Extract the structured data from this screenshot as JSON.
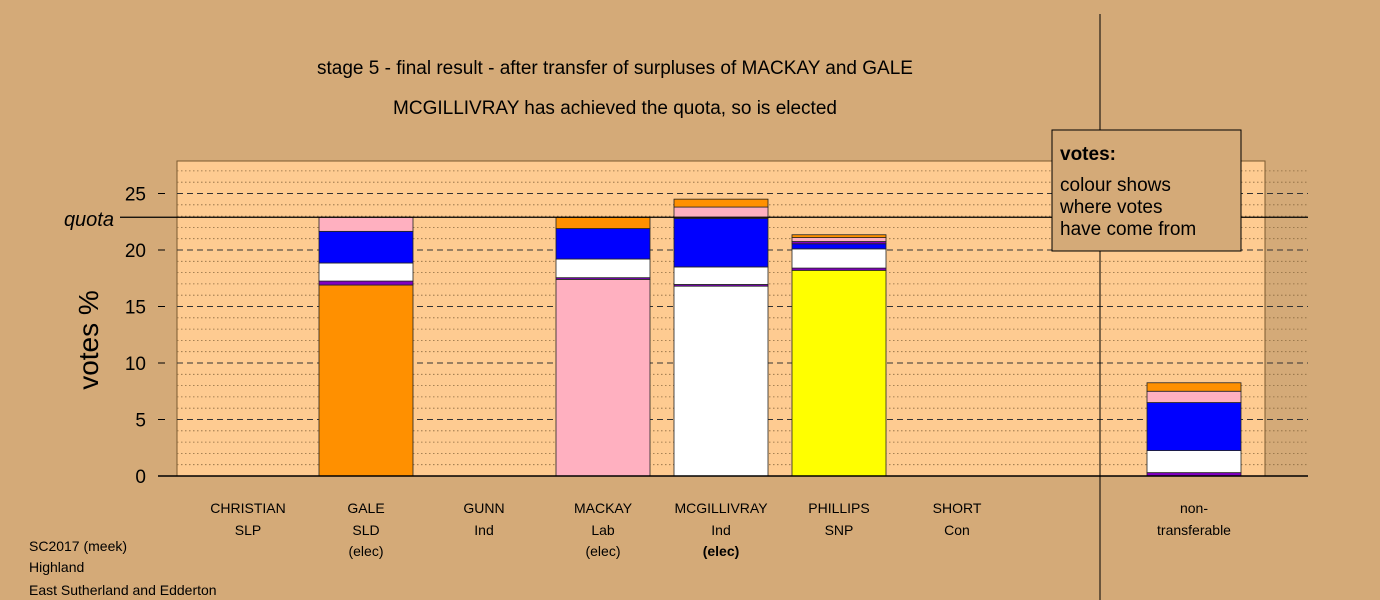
{
  "chart_data": {
    "type": "bar",
    "stacked": true,
    "title": "stage 5 - final result - after transfer of surpluses of MACKAY and GALE",
    "subtitle": "MCGILLIVRAY has achieved the quota, so is elected",
    "ylabel": "votes %",
    "ylim": [
      0,
      28
    ],
    "yticks": [
      0,
      5,
      10,
      15,
      20,
      25
    ],
    "quota": 22.9,
    "quota_label": "quota",
    "grid": true,
    "legend": {
      "title": "votes:",
      "lines": [
        "colour shows",
        "where votes",
        "have come from"
      ],
      "placement": "top-right"
    },
    "colors": {
      "purple": "#8000c0",
      "white": "#ffffff",
      "blue": "#0000ff",
      "pink": "#ffb0c0",
      "orange": "#ff9000",
      "yellow": "#ffff00"
    },
    "candidates": [
      {
        "name": "CHRISTIAN",
        "party": "SLP",
        "status": "",
        "segments": []
      },
      {
        "name": "GALE",
        "party": "SLD",
        "status": "(elec)",
        "segments": [
          {
            "color": "orange",
            "value": 16.9
          },
          {
            "color": "purple",
            "value": 0.35
          },
          {
            "color": "white",
            "value": 1.6
          },
          {
            "color": "blue",
            "value": 2.8
          },
          {
            "color": "pink",
            "value": 1.25
          }
        ]
      },
      {
        "name": "GUNN",
        "party": "Ind",
        "status": "",
        "segments": []
      },
      {
        "name": "MACKAY",
        "party": "Lab",
        "status": "(elec)",
        "segments": [
          {
            "color": "pink",
            "value": 17.4
          },
          {
            "color": "purple",
            "value": 0.15
          },
          {
            "color": "white",
            "value": 1.65
          },
          {
            "color": "blue",
            "value": 2.7
          },
          {
            "color": "orange",
            "value": 1.0
          }
        ]
      },
      {
        "name": "MCGILLIVRAY",
        "party": "Ind",
        "status": "(elec)",
        "status_bold": true,
        "segments": [
          {
            "color": "white",
            "value": 16.8
          },
          {
            "color": "purple",
            "value": 0.15
          },
          {
            "color": "white",
            "value": 1.55
          },
          {
            "color": "blue",
            "value": 4.3
          },
          {
            "color": "pink",
            "value": 1.0
          },
          {
            "color": "orange",
            "value": 0.7
          }
        ]
      },
      {
        "name": "PHILLIPS",
        "party": "SNP",
        "status": "",
        "segments": [
          {
            "color": "yellow",
            "value": 18.2
          },
          {
            "color": "purple",
            "value": 0.2
          },
          {
            "color": "white",
            "value": 1.7
          },
          {
            "color": "blue",
            "value": 0.45
          },
          {
            "color": "purple",
            "value": 0.2
          },
          {
            "color": "pink",
            "value": 0.35
          },
          {
            "color": "orange",
            "value": 0.25
          }
        ]
      },
      {
        "name": "SHORT",
        "party": "Con",
        "status": "",
        "segments": []
      },
      {
        "name": "non-",
        "party": "transferable",
        "status": "",
        "segments": [
          {
            "color": "purple",
            "value": 0.3
          },
          {
            "color": "white",
            "value": 1.95
          },
          {
            "color": "blue",
            "value": 4.25
          },
          {
            "color": "pink",
            "value": 1.0
          },
          {
            "color": "orange",
            "value": 0.75
          }
        ]
      }
    ]
  },
  "footer": {
    "line1": "SC2017 (meek)",
    "line2": "Highland",
    "line3": "East Sutherland and Edderton"
  }
}
